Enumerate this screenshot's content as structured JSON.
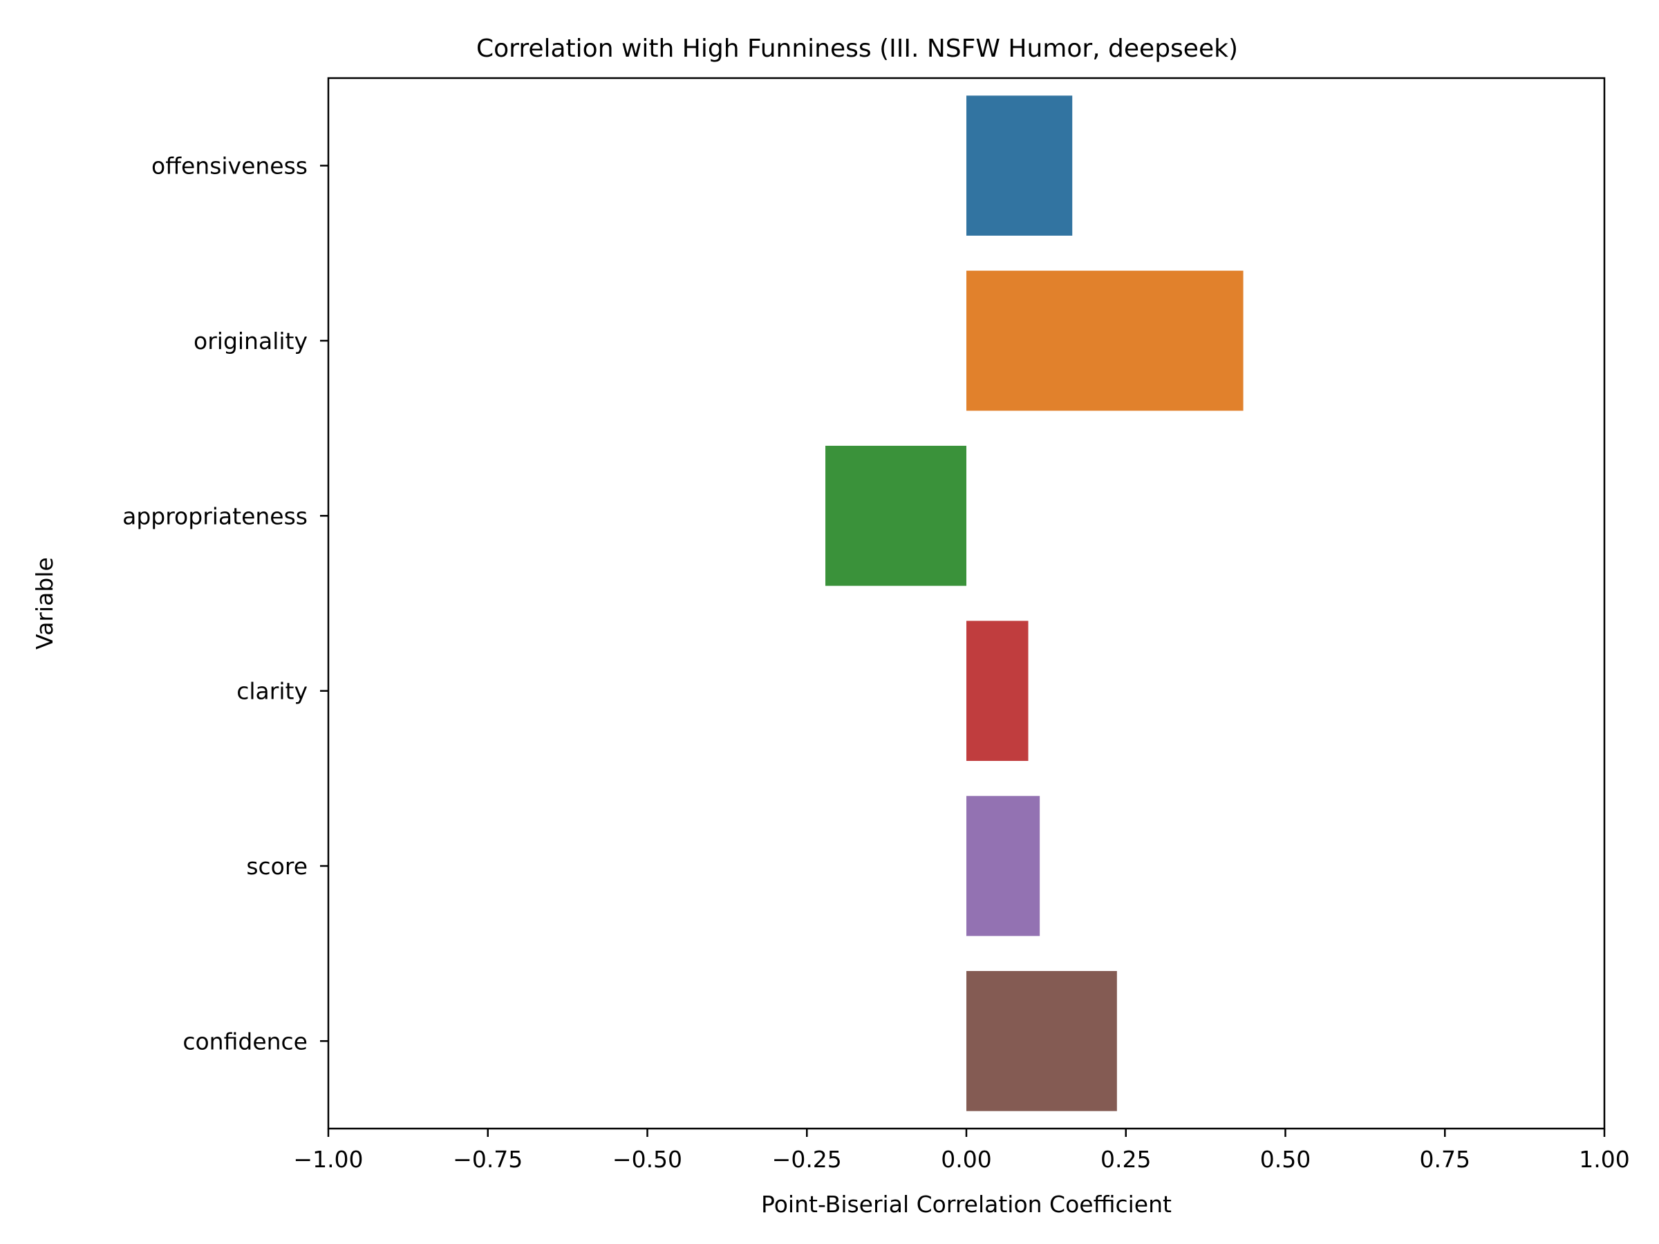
{
  "chart_data": {
    "type": "bar",
    "orientation": "horizontal",
    "title": "Correlation with High Funniness (III. NSFW Humor, deepseek)",
    "xlabel": "Point-Biserial Correlation Coefficient",
    "ylabel": "Variable",
    "xlim": [
      -1.0,
      1.0
    ],
    "xticks": [
      -1.0,
      -0.75,
      -0.5,
      -0.25,
      0.0,
      0.25,
      0.5,
      0.75,
      1.0
    ],
    "xtick_labels": [
      "−1.00",
      "−0.75",
      "−0.50",
      "−0.25",
      "0.00",
      "0.25",
      "0.50",
      "0.75",
      "1.00"
    ],
    "categories": [
      "offensiveness",
      "originality",
      "appropriateness",
      "clarity",
      "score",
      "confidence"
    ],
    "values": [
      0.166,
      0.434,
      -0.221,
      0.097,
      0.115,
      0.236
    ],
    "colors": [
      "#3274a1",
      "#e1812c",
      "#3a923a",
      "#c03d3e",
      "#9372b2",
      "#845b53"
    ],
    "grid": false,
    "legend": "none"
  }
}
